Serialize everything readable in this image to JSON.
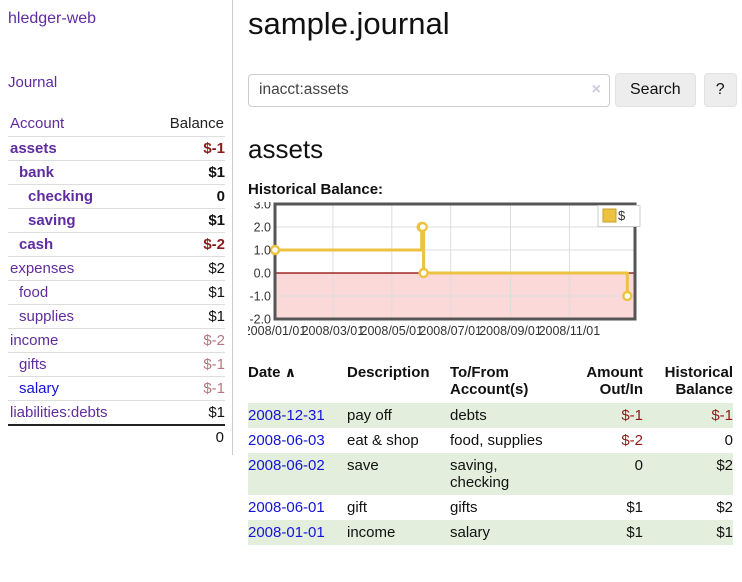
{
  "app": {
    "title": "hledger-web"
  },
  "colors": {
    "purple": "#5f2ca0",
    "blue": "#1414d6",
    "negative": "#8f1a1a",
    "rose": "#b9767c",
    "row_green": "#e4eedd",
    "gold": "#EDC240",
    "gold_border": "#c5a02f",
    "zero_line": "#8b0000",
    "negative_region": "#fbd9d9",
    "gridline": "#dddddd",
    "plot_border": "#555555"
  },
  "sidebar": {
    "nav": {
      "journal_label": "Journal"
    },
    "accounts_table": {
      "account_header": "Account",
      "balance_header": "Balance",
      "rows": [
        {
          "name": "assets",
          "level": 1,
          "bold": true,
          "balance": "$-1",
          "balance_style": "negative"
        },
        {
          "name": "bank",
          "level": 2,
          "bold": true,
          "balance": "$1",
          "balance_style": "normal"
        },
        {
          "name": "checking",
          "level": 3,
          "bold": true,
          "balance": "0",
          "balance_style": "normal"
        },
        {
          "name": "saving",
          "level": 3,
          "bold": true,
          "balance": "$1",
          "balance_style": "normal"
        },
        {
          "name": "cash",
          "level": 2,
          "bold": true,
          "balance": "$-2",
          "balance_style": "negative"
        },
        {
          "name": "expenses",
          "level": 1,
          "bold": false,
          "balance": "$2",
          "balance_style": "normal"
        },
        {
          "name": "food",
          "level": 2,
          "bold": false,
          "balance": "$1",
          "balance_style": "normal"
        },
        {
          "name": "supplies",
          "level": 2,
          "bold": false,
          "balance": "$1",
          "balance_style": "normal"
        },
        {
          "name": "income",
          "level": 1,
          "bold": false,
          "balance": "$-2",
          "balance_style": "rose"
        },
        {
          "name": "gifts",
          "level": 2,
          "bold": false,
          "balance": "$-1",
          "balance_style": "rose"
        },
        {
          "name": "salary",
          "level": 2,
          "bold": false,
          "balance": "$-1",
          "balance_style": "rose",
          "link_style": "blue"
        },
        {
          "name": "liabilities:debts",
          "level": 1,
          "bold": false,
          "balance": "$1",
          "balance_style": "normal"
        }
      ],
      "total": "0"
    }
  },
  "header": {
    "title": "sample.journal"
  },
  "search": {
    "value": "inacct:assets",
    "clear_icon": "×",
    "button_label": "Search",
    "help_label": "?"
  },
  "main": {
    "account_heading": "assets",
    "chart_label": "Historical Balance:"
  },
  "chart_data": {
    "type": "line",
    "step": true,
    "title": "Historical Balance",
    "legend": {
      "position": "top-right",
      "entries": [
        "$"
      ]
    },
    "series": [
      {
        "name": "$",
        "color": "#EDC240",
        "points": [
          [
            "2008-01-01",
            1
          ],
          [
            "2008-06-01",
            2
          ],
          [
            "2008-06-02",
            2
          ],
          [
            "2008-06-03",
            0
          ],
          [
            "2008-12-31",
            -1
          ]
        ]
      }
    ],
    "x_ticks": [
      {
        "date": "2008-01-01",
        "label": "2008/01/01"
      },
      {
        "date": "2008-03-01",
        "label": "2008/03/01"
      },
      {
        "date": "2008-05-01",
        "label": "2008/05/01"
      },
      {
        "date": "2008-07-01",
        "label": "2008/07/01"
      },
      {
        "date": "2008-09-01",
        "label": "2008/09/01"
      },
      {
        "date": "2008-11-01",
        "label": "2008/11/01"
      }
    ],
    "x_span_days": 373,
    "y_ticks": [
      "3.0",
      "2.0",
      "1.0",
      "0.0",
      "-1.0",
      "-2.0"
    ],
    "ylim": [
      -2,
      3
    ],
    "grid": true,
    "negative_region_shaded": true
  },
  "register": {
    "headers": {
      "date": "Date",
      "sort_caret": "∧",
      "description": "Description",
      "accounts": "To/From Account(s)",
      "amount": "Amount Out/In",
      "balance": "Historical Balance"
    },
    "rows": [
      {
        "date": "2008-12-31",
        "description": "pay off",
        "accounts": "debts",
        "amount": "$-1",
        "amount_style": "negative",
        "balance": "$-1",
        "balance_style": "negative",
        "shaded": true
      },
      {
        "date": "2008-06-03",
        "description": "eat & shop",
        "accounts": "food, supplies",
        "amount": "$-2",
        "amount_style": "negative",
        "balance": "0",
        "balance_style": "normal",
        "shaded": false
      },
      {
        "date": "2008-06-02",
        "description": "save",
        "accounts": "saving, checking",
        "amount": "0",
        "amount_style": "normal",
        "balance": "$2",
        "balance_style": "normal",
        "shaded": true
      },
      {
        "date": "2008-06-01",
        "description": "gift",
        "accounts": "gifts",
        "amount": "$1",
        "amount_style": "normal",
        "balance": "$2",
        "balance_style": "normal",
        "shaded": false
      },
      {
        "date": "2008-01-01",
        "description": "income",
        "accounts": "salary",
        "amount": "$1",
        "amount_style": "normal",
        "balance": "$1",
        "balance_style": "normal",
        "shaded": true
      }
    ]
  }
}
